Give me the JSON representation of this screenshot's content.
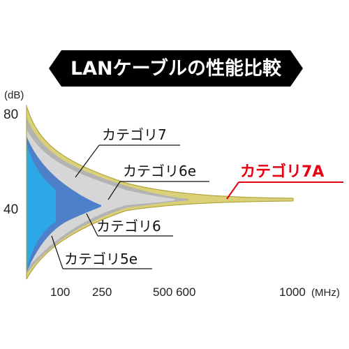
{
  "chart_data": {
    "type": "area",
    "title": "LANケーブルの性能比較",
    "ylabel": "(dB)",
    "xlabel": "(MHz)",
    "ylim": [
      0,
      100
    ],
    "xlim": [
      0,
      1000
    ],
    "y_ticks": [
      "80",
      "40"
    ],
    "x_ticks": [
      "100",
      "250",
      "500 600",
      "1000"
    ],
    "x_unit_label": "(MHz)",
    "series": [
      {
        "name": "カテゴリ7A",
        "max_frequency": 1000,
        "color": "#d9d077"
      },
      {
        "name": "カテゴリ7",
        "max_frequency": 600,
        "color": "#b3b3b3"
      },
      {
        "name": "カテゴリ6e",
        "max_frequency": 500,
        "color": "#d6d6d6"
      },
      {
        "name": "カテゴリ6",
        "max_frequency": 250,
        "color": "#4e7fc9"
      },
      {
        "name": "カテゴリ5e",
        "max_frequency": 100,
        "color": "#2da7e6"
      }
    ],
    "callouts": [
      {
        "text": "カテゴリ7",
        "target": "カテゴリ7"
      },
      {
        "text": "カテゴリ6e",
        "target": "カテゴリ6e"
      },
      {
        "text": "カテゴリ7A",
        "target": "カテゴリ7A",
        "highlight": true
      },
      {
        "text": "カテゴリ6",
        "target": "カテゴリ6"
      },
      {
        "text": "カテゴリ5e",
        "target": "カテゴリ5e"
      }
    ],
    "colors": {
      "title_bg": "#000000",
      "highlight": "#e60012",
      "outline": "#a89b2a"
    }
  }
}
